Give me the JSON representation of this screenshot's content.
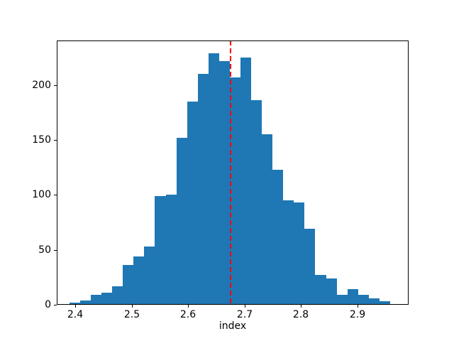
{
  "chart_data": {
    "type": "histogram",
    "title": "",
    "xlabel": "index",
    "ylabel": "",
    "bar_color": "#1f77b4",
    "background_color": "#ffffff",
    "grid": false,
    "bin_start": 2.3898,
    "bin_width": 0.018933,
    "counts": [
      2,
      4,
      9,
      11,
      17,
      36,
      44,
      53,
      99,
      100,
      152,
      185,
      210,
      229,
      222,
      207,
      225,
      186,
      155,
      123,
      95,
      93,
      69,
      27,
      24,
      9,
      14,
      9,
      6,
      3
    ],
    "xlim": [
      2.3673,
      2.9905
    ],
    "ylim": [
      0,
      240.45
    ],
    "xtick_values": [
      2.4,
      2.5,
      2.6,
      2.7,
      2.8,
      2.9
    ],
    "xtick_labels": [
      "2.4",
      "2.5",
      "2.6",
      "2.7",
      "2.8",
      "2.9"
    ],
    "ytick_values": [
      0,
      50,
      100,
      150,
      200
    ],
    "ytick_labels": [
      "0",
      "50",
      "100",
      "150",
      "200"
    ],
    "vline": {
      "x": 2.675,
      "color": "#ff0000",
      "style": "dashed"
    }
  }
}
